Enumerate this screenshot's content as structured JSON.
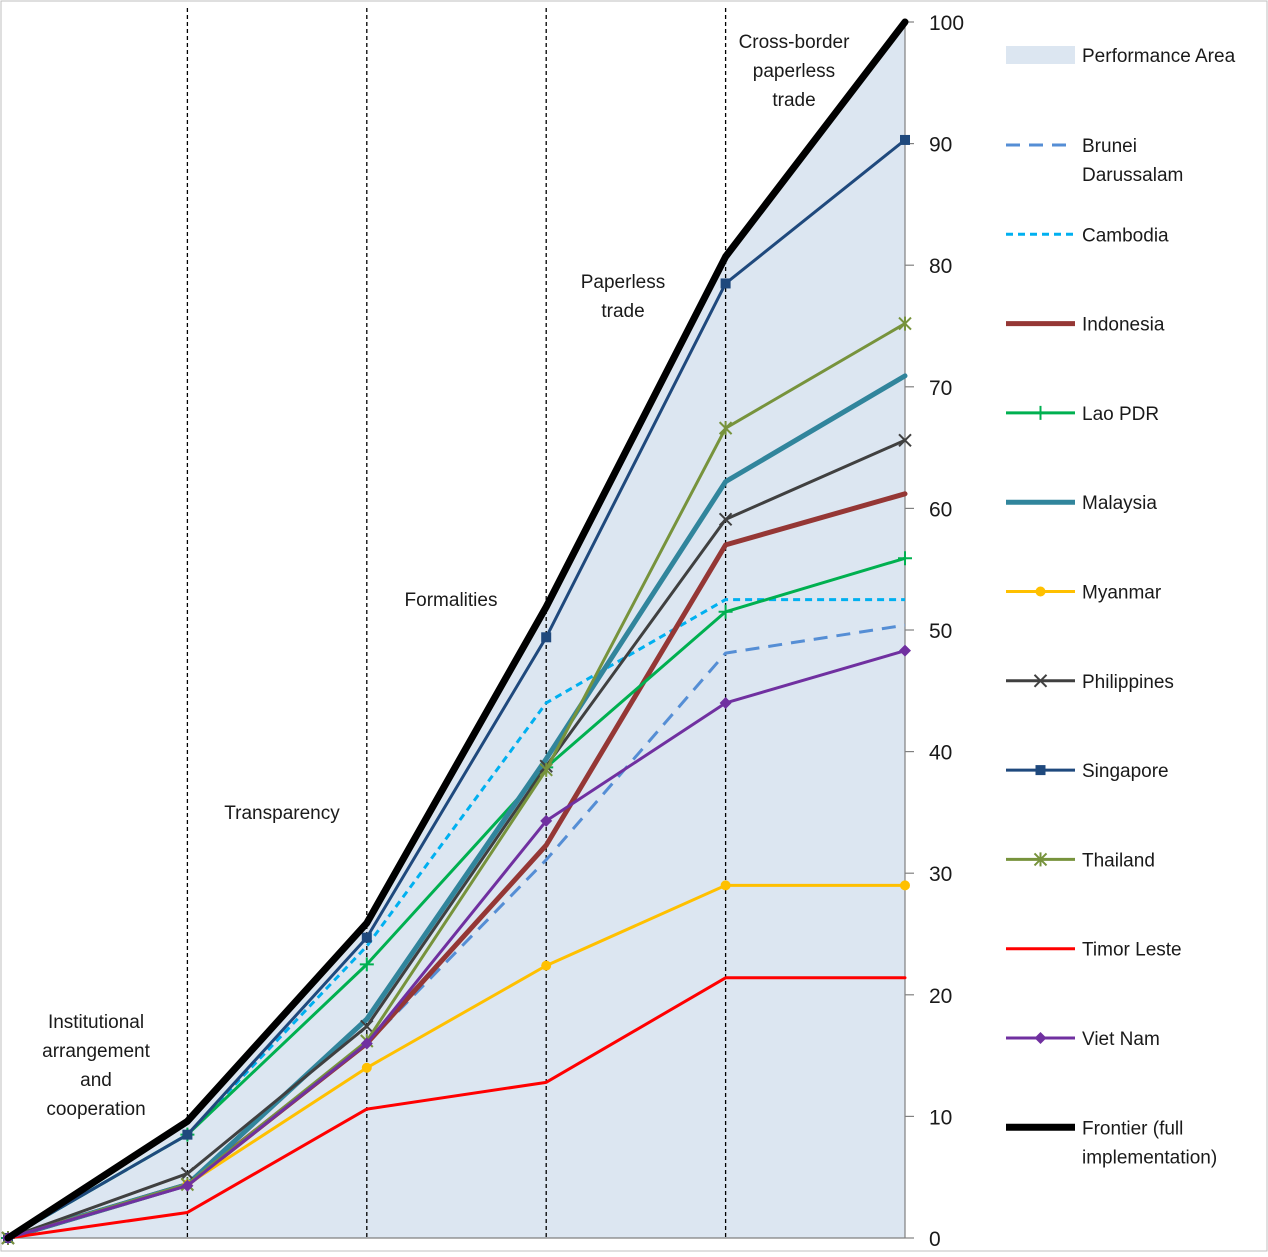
{
  "chart_data": {
    "type": "line",
    "x": [
      0,
      1,
      2,
      3,
      4,
      5
    ],
    "ylim": [
      0,
      100
    ],
    "y_ticks": [
      0,
      10,
      20,
      30,
      40,
      50,
      60,
      70,
      80,
      90,
      100
    ],
    "y_axis_side": "right",
    "grid": false,
    "legend_position": "right",
    "section_labels": [
      {
        "lines": [
          "Institutional",
          "arrangement",
          "and",
          "cooperation"
        ]
      },
      {
        "lines": [
          "Transparency"
        ]
      },
      {
        "lines": [
          "Formalities"
        ]
      },
      {
        "lines": [
          "Paperless",
          "trade"
        ]
      },
      {
        "lines": [
          "Cross-border",
          "paperless",
          "trade"
        ]
      }
    ],
    "area": {
      "name": "Performance Area",
      "color": "#dce6f1",
      "values": [
        0,
        9.6,
        25.9,
        51.9,
        80.7,
        100
      ]
    },
    "series": [
      {
        "name": "Brunei Darussalam",
        "color": "#558ed5",
        "dash": "14 9",
        "width": 3,
        "marker": "none",
        "values": [
          0,
          4.4,
          16.0,
          31.1,
          48.1,
          50.4
        ]
      },
      {
        "name": "Cambodia",
        "color": "#00b0f0",
        "dash": "7 5",
        "width": 3,
        "marker": "none",
        "values": [
          0,
          8.5,
          24.0,
          44.0,
          52.5,
          52.5
        ]
      },
      {
        "name": "Indonesia",
        "color": "#953735",
        "dash": "",
        "width": 5,
        "marker": "none",
        "values": [
          0,
          4.4,
          16.0,
          32.3,
          57.0,
          61.2
        ]
      },
      {
        "name": "Lao PDR",
        "color": "#00b050",
        "dash": "",
        "width": 3,
        "marker": "plus",
        "values": [
          0,
          8.5,
          22.5,
          38.7,
          51.5,
          55.9
        ]
      },
      {
        "name": "Malaysia",
        "color": "#31859c",
        "dash": "",
        "width": 5,
        "marker": "none",
        "values": [
          0,
          4.4,
          18.0,
          39.4,
          62.2,
          70.9
        ]
      },
      {
        "name": "Myanmar",
        "color": "#ffc000",
        "dash": "",
        "width": 3,
        "marker": "circle",
        "values": [
          0,
          4.4,
          14.0,
          22.4,
          29.0,
          29.0
        ]
      },
      {
        "name": "Philippines",
        "color": "#404040",
        "dash": "",
        "width": 3,
        "marker": "x",
        "values": [
          0,
          5.3,
          17.4,
          38.8,
          59.1,
          65.6
        ]
      },
      {
        "name": "Singapore",
        "color": "#1f497d",
        "dash": "",
        "width": 3,
        "marker": "square",
        "values": [
          0,
          8.5,
          24.7,
          49.4,
          78.5,
          90.3
        ]
      },
      {
        "name": "Thailand",
        "color": "#77933c",
        "dash": "",
        "width": 3,
        "marker": "star",
        "values": [
          0,
          4.4,
          16.2,
          38.5,
          66.6,
          75.2
        ]
      },
      {
        "name": "Timor Leste",
        "color": "#ff0000",
        "dash": "",
        "width": 3,
        "marker": "none",
        "values": [
          0,
          2.1,
          10.6,
          12.8,
          21.4,
          21.4
        ]
      },
      {
        "name": "Viet Nam",
        "color": "#7030a0",
        "dash": "",
        "width": 3,
        "marker": "diamond",
        "values": [
          0,
          4.3,
          16.0,
          34.3,
          44.0,
          48.3
        ]
      },
      {
        "name": "Frontier (full implementation)",
        "color": "#000000",
        "dash": "",
        "width": 7,
        "marker": "none",
        "values": [
          0,
          9.6,
          25.9,
          51.9,
          80.7,
          100
        ]
      }
    ]
  }
}
